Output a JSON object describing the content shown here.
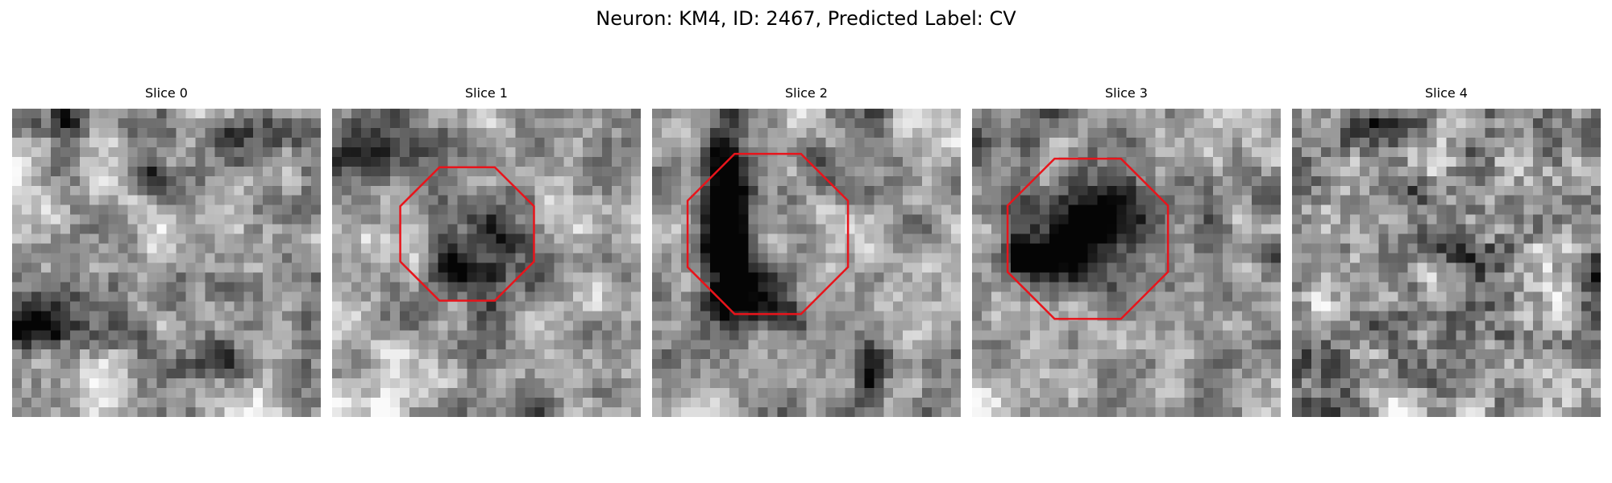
{
  "figure": {
    "title": "Neuron: KM4, ID: 2467, Predicted Label: CV"
  },
  "panels": [
    {
      "title": "Slice 0",
      "has_outline": false
    },
    {
      "title": "Slice 1",
      "has_outline": true
    },
    {
      "title": "Slice 2",
      "has_outline": true
    },
    {
      "title": "Slice 3",
      "has_outline": true
    },
    {
      "title": "Slice 4",
      "has_outline": false
    }
  ],
  "colors": {
    "outline": "#e8141b",
    "background": "#ffffff"
  }
}
